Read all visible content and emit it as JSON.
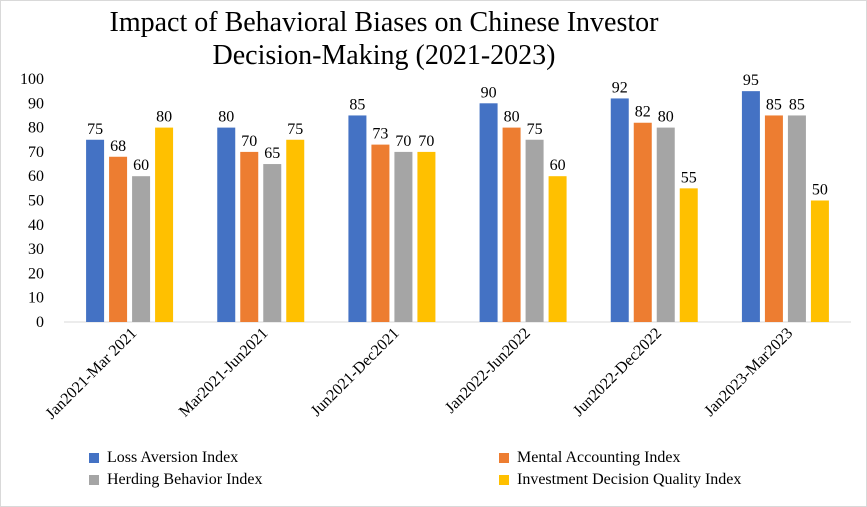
{
  "chart_data": {
    "type": "bar",
    "title": [
      "Impact of Behavioral Biases on Chinese Investor",
      "Decision-Making (2021-2023)"
    ],
    "xlabel": "",
    "ylabel": "",
    "ylim": [
      0,
      100
    ],
    "ytick_step": 10,
    "grid": false,
    "legend_position": "bottom",
    "categories": [
      "Jan2021-Mar 2021",
      "Mar2021-Jun2021",
      "Jun2021-Dec2021",
      "Jan2022-Jun2022",
      "Jun2022-Dec2022",
      "Jan2023-Mar2023"
    ],
    "series": [
      {
        "name": "Loss Aversion Index",
        "color": "#4472C4",
        "values": [
          75,
          80,
          85,
          90,
          92,
          95
        ]
      },
      {
        "name": "Mental Accounting Index",
        "color": "#ED7D31",
        "values": [
          68,
          70,
          73,
          80,
          82,
          85
        ]
      },
      {
        "name": "Herding Behavior Index",
        "color": "#A5A5A5",
        "values": [
          60,
          65,
          70,
          75,
          80,
          85
        ]
      },
      {
        "name": "Investment Decision Quality Index",
        "color": "#FFC000",
        "values": [
          80,
          75,
          70,
          60,
          55,
          50
        ]
      }
    ]
  }
}
